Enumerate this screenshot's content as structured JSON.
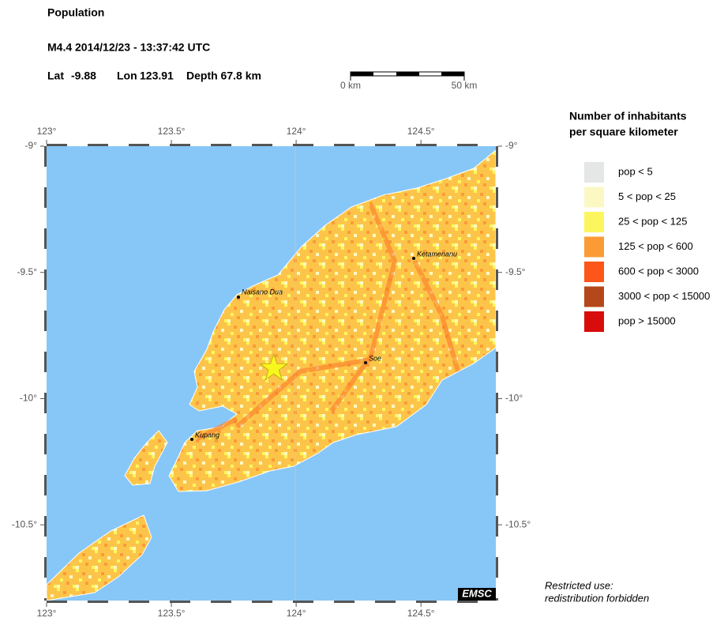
{
  "header": {
    "title": "Population",
    "event": "M4.4  2014/12/23 - 13:37:42 UTC",
    "lat_label": "Lat",
    "lat": -9.88,
    "lon_label": "Lon",
    "lon": 123.91,
    "depth": "Depth  67.8 km"
  },
  "scale": {
    "start": "0 km",
    "end": "50 km"
  },
  "map": {
    "xlim": [
      123,
      124.8
    ],
    "ylim": [
      -9,
      -10.8
    ],
    "xticks": [
      {
        "value": 123,
        "label": "123°"
      },
      {
        "value": 123.5,
        "label": "123.5°"
      },
      {
        "value": 124,
        "label": "124°"
      },
      {
        "value": 124.5,
        "label": "124.5°"
      }
    ],
    "yticks": [
      {
        "value": -9,
        "label": "-9°"
      },
      {
        "value": -9.5,
        "label": "-9.5°"
      },
      {
        "value": -10,
        "label": "-10°"
      },
      {
        "value": -10.5,
        "label": "-10.5°"
      }
    ],
    "cities": [
      "Naisano Dua",
      "Ketamenanu",
      "Soe",
      "Kupang"
    ],
    "credit": "EMSC"
  },
  "legend": {
    "title": [
      "Number of inhabitants",
      "per square kilometer"
    ],
    "entries": [
      {
        "label": "pop < 5",
        "color": "#e5e6e6"
      },
      {
        "label": "5 < pop < 25",
        "color": "#fbf8c4"
      },
      {
        "label": "25 < pop < 125",
        "color": "#fcf65e"
      },
      {
        "label": "125 < pop < 600",
        "color": "#fb9b36"
      },
      {
        "label": "600 < pop < 3000",
        "color": "#fc561a"
      },
      {
        "label": "3000 < pop < 15000",
        "color": "#b4481a"
      },
      {
        "label": "pop > 15000",
        "color": "#d90c0c"
      }
    ]
  },
  "notice": [
    "Restricted use:",
    "redistribution forbidden"
  ]
}
